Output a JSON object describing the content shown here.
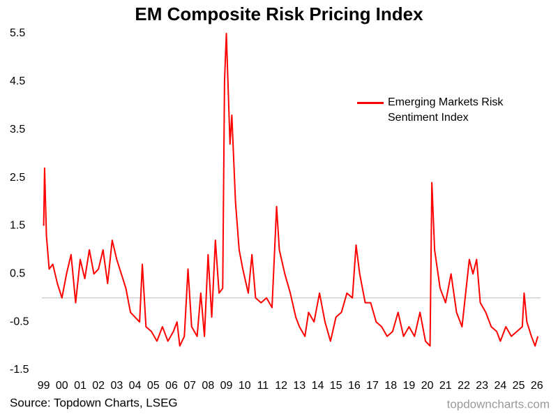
{
  "chart_data": {
    "type": "line",
    "title": "EM Composite Risk Pricing Index",
    "source": "Source: Topdown Charts, LSEG",
    "watermark": "topdowncharts.com",
    "x": [
      1999.0,
      1999.05,
      1999.15,
      1999.3,
      1999.5,
      1999.75,
      2000.0,
      2000.25,
      2000.5,
      2000.75,
      2001.0,
      2001.25,
      2001.5,
      2001.75,
      2002.0,
      2002.25,
      2002.5,
      2002.75,
      2003.0,
      2003.25,
      2003.5,
      2003.75,
      2004.0,
      2004.25,
      2004.4,
      2004.6,
      2004.9,
      2005.2,
      2005.5,
      2005.8,
      2006.1,
      2006.3,
      2006.45,
      2006.7,
      2006.9,
      2007.1,
      2007.4,
      2007.6,
      2007.8,
      2008.0,
      2008.2,
      2008.4,
      2008.6,
      2008.8,
      2008.9,
      2009.0,
      2009.2,
      2009.3,
      2009.5,
      2009.7,
      2009.9,
      2010.2,
      2010.4,
      2010.6,
      2010.9,
      2011.2,
      2011.5,
      2011.75,
      2011.9,
      2012.2,
      2012.5,
      2012.8,
      2013.0,
      2013.3,
      2013.5,
      2013.8,
      2014.1,
      2014.4,
      2014.7,
      2015.0,
      2015.3,
      2015.6,
      2015.9,
      2016.1,
      2016.3,
      2016.6,
      2016.9,
      2017.2,
      2017.5,
      2017.8,
      2018.1,
      2018.4,
      2018.7,
      2019.0,
      2019.3,
      2019.6,
      2019.9,
      2020.15,
      2020.25,
      2020.4,
      2020.7,
      2021.0,
      2021.3,
      2021.6,
      2021.9,
      2022.1,
      2022.3,
      2022.5,
      2022.7,
      2022.9,
      2023.2,
      2023.5,
      2023.8,
      2024.0,
      2024.3,
      2024.6,
      2024.9,
      2025.2,
      2025.3,
      2025.45,
      2025.7,
      2025.9,
      2026.05
    ],
    "series": [
      {
        "name": "Emerging Markets Risk Sentiment Index",
        "color": "#ff0000",
        "values": [
          1.5,
          2.7,
          1.3,
          0.6,
          0.7,
          0.3,
          0.0,
          0.5,
          0.9,
          -0.1,
          0.8,
          0.4,
          1.0,
          0.5,
          0.6,
          1.0,
          0.3,
          1.2,
          0.8,
          0.5,
          0.2,
          -0.3,
          -0.4,
          -0.5,
          0.7,
          -0.6,
          -0.7,
          -0.9,
          -0.6,
          -0.9,
          -0.7,
          -0.5,
          -1.0,
          -0.8,
          0.6,
          -0.6,
          -0.8,
          0.1,
          -0.8,
          0.9,
          -0.4,
          1.2,
          0.1,
          0.2,
          4.5,
          5.5,
          3.2,
          3.8,
          2.0,
          1.0,
          0.6,
          0.1,
          0.9,
          0.0,
          -0.1,
          0.0,
          -0.2,
          1.9,
          1.0,
          0.5,
          0.1,
          -0.4,
          -0.6,
          -0.8,
          -0.3,
          -0.5,
          0.1,
          -0.5,
          -0.9,
          -0.4,
          -0.3,
          0.1,
          0.0,
          1.1,
          0.5,
          -0.1,
          -0.1,
          -0.5,
          -0.6,
          -0.8,
          -0.7,
          -0.3,
          -0.8,
          -0.6,
          -0.8,
          -0.3,
          -0.9,
          -1.0,
          2.4,
          1.0,
          0.2,
          -0.1,
          0.5,
          -0.3,
          -0.6,
          0.1,
          0.8,
          0.5,
          0.8,
          -0.1,
          -0.3,
          -0.6,
          -0.7,
          -0.9,
          -0.6,
          -0.8,
          -0.7,
          -0.6,
          0.1,
          -0.5,
          -0.8,
          -1.0,
          -0.8
        ]
      }
    ],
    "xlim": [
      1998.9,
      2026.2
    ],
    "xticks": [
      {
        "value": 1999,
        "label": "99"
      },
      {
        "value": 2000,
        "label": "00"
      },
      {
        "value": 2001,
        "label": "01"
      },
      {
        "value": 2002,
        "label": "02"
      },
      {
        "value": 2003,
        "label": "03"
      },
      {
        "value": 2004,
        "label": "04"
      },
      {
        "value": 2005,
        "label": "05"
      },
      {
        "value": 2006,
        "label": "06"
      },
      {
        "value": 2007,
        "label": "07"
      },
      {
        "value": 2008,
        "label": "08"
      },
      {
        "value": 2009,
        "label": "09"
      },
      {
        "value": 2010,
        "label": "10"
      },
      {
        "value": 2011,
        "label": "11"
      },
      {
        "value": 2012,
        "label": "12"
      },
      {
        "value": 2013,
        "label": "13"
      },
      {
        "value": 2014,
        "label": "14"
      },
      {
        "value": 2015,
        "label": "15"
      },
      {
        "value": 2016,
        "label": "16"
      },
      {
        "value": 2017,
        "label": "17"
      },
      {
        "value": 2018,
        "label": "18"
      },
      {
        "value": 2019,
        "label": "19"
      },
      {
        "value": 2020,
        "label": "20"
      },
      {
        "value": 2021,
        "label": "21"
      },
      {
        "value": 2022,
        "label": "22"
      },
      {
        "value": 2023,
        "label": "23"
      },
      {
        "value": 2024,
        "label": "24"
      },
      {
        "value": 2025,
        "label": "25"
      },
      {
        "value": 2026,
        "label": "26"
      }
    ],
    "ylim": [
      -1.5,
      5.5
    ],
    "yticks": [
      -1.5,
      -0.5,
      0.5,
      1.5,
      2.5,
      3.5,
      4.5,
      5.5
    ],
    "grid": false,
    "legend": "upper right"
  }
}
